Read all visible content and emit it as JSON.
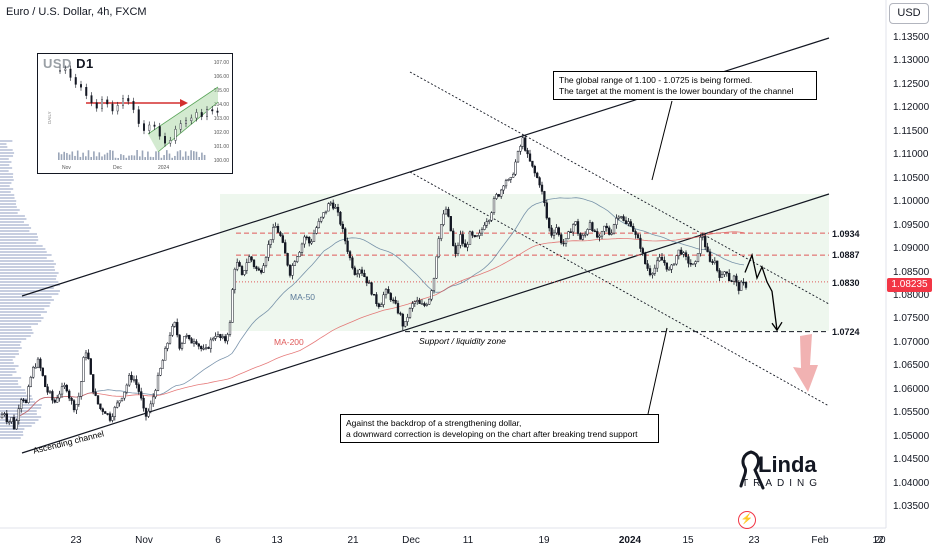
{
  "header": {
    "symbol_title": "Euro / U.S. Dollar, 4h, FXCM",
    "currency_button": "USD"
  },
  "price_tag": "1.08235",
  "chart_data": {
    "type": "candlestick",
    "symbol": "EURUSD",
    "timeframe": "4h",
    "y_axis": {
      "range": [
        1.0315,
        1.1385
      ],
      "tick_labels": [
        "1.13500",
        "1.13000",
        "1.12500",
        "1.12000",
        "1.11500",
        "1.11000",
        "1.10500",
        "1.10000",
        "1.09500",
        "1.09000",
        "1.08500",
        "1.08000",
        "1.07500",
        "1.07000",
        "1.06500",
        "1.06000",
        "1.05500",
        "1.05000",
        "1.04500",
        "1.04000",
        "1.03500"
      ]
    },
    "x_axis": {
      "tick_labels": [
        {
          "text": "23",
          "bold": false
        },
        {
          "text": "Nov",
          "bold": false
        },
        {
          "text": "6",
          "bold": false
        },
        {
          "text": "13",
          "bold": false
        },
        {
          "text": "21",
          "bold": false
        },
        {
          "text": "Dec",
          "bold": false
        },
        {
          "text": "11",
          "bold": false
        },
        {
          "text": "19",
          "bold": false
        },
        {
          "text": "2024",
          "bold": true
        },
        {
          "text": "15",
          "bold": false
        },
        {
          "text": "23",
          "bold": false
        },
        {
          "text": "Feb",
          "bold": false
        },
        {
          "text": "12",
          "bold": false
        },
        {
          "text": "20",
          "bold": false
        }
      ]
    },
    "price_path": [
      [
        0,
        1.054
      ],
      [
        4,
        1.0555
      ],
      [
        8,
        1.053
      ],
      [
        12,
        1.054
      ],
      [
        15,
        1.051
      ],
      [
        18,
        1.056
      ],
      [
        22,
        1.059
      ],
      [
        26,
        1.057
      ],
      [
        30,
        1.062
      ],
      [
        34,
        1.065
      ],
      [
        38,
        1.066
      ],
      [
        42,
        1.0635
      ],
      [
        46,
        1.06
      ],
      [
        50,
        1.059
      ],
      [
        54,
        1.057
      ],
      [
        58,
        1.059
      ],
      [
        62,
        1.06
      ],
      [
        66,
        1.061
      ],
      [
        70,
        1.058
      ],
      [
        75,
        1.056
      ],
      [
        80,
        1.0595
      ],
      [
        85,
        1.069
      ],
      [
        88,
        1.067
      ],
      [
        92,
        1.061
      ],
      [
        96,
        1.058
      ],
      [
        100,
        1.056
      ],
      [
        105,
        1.0555
      ],
      [
        110,
        1.054
      ],
      [
        115,
        1.056
      ],
      [
        120,
        1.058
      ],
      [
        125,
        1.06
      ],
      [
        130,
        1.063
      ],
      [
        135,
        1.062
      ],
      [
        140,
        1.059
      ],
      [
        145,
        1.054
      ],
      [
        150,
        1.056
      ],
      [
        155,
        1.06
      ],
      [
        160,
        1.064
      ],
      [
        165,
        1.068
      ],
      [
        170,
        1.072
      ],
      [
        175,
        1.074
      ],
      [
        180,
        1.069
      ],
      [
        185,
        1.072
      ],
      [
        190,
        1.07
      ],
      [
        195,
        1.071
      ],
      [
        200,
        1.069
      ],
      [
        205,
        1.068
      ],
      [
        210,
        1.07
      ],
      [
        215,
        1.072
      ],
      [
        220,
        1.071
      ],
      [
        225,
        1.0705
      ],
      [
        230,
        1.074
      ],
      [
        234,
        1.086
      ],
      [
        238,
        1.087
      ],
      [
        242,
        1.084
      ],
      [
        246,
        1.087
      ],
      [
        250,
        1.0885
      ],
      [
        255,
        1.086
      ],
      [
        260,
        1.085
      ],
      [
        265,
        1.088
      ],
      [
        270,
        1.092
      ],
      [
        275,
        1.095
      ],
      [
        280,
        1.093
      ],
      [
        285,
        1.089
      ],
      [
        290,
        1.085
      ],
      [
        295,
        1.088
      ],
      [
        300,
        1.09
      ],
      [
        305,
        1.093
      ],
      [
        310,
        1.091
      ],
      [
        315,
        1.094
      ],
      [
        320,
        1.096
      ],
      [
        325,
        1.098
      ],
      [
        330,
        1.1
      ],
      [
        335,
        1.099
      ],
      [
        340,
        1.096
      ],
      [
        345,
        1.092
      ],
      [
        350,
        1.088
      ],
      [
        355,
        1.085
      ],
      [
        360,
        1.086
      ],
      [
        365,
        1.084
      ],
      [
        370,
        1.082
      ],
      [
        375,
        1.079
      ],
      [
        380,
        1.078
      ],
      [
        385,
        1.081
      ],
      [
        390,
        1.08
      ],
      [
        395,
        1.078
      ],
      [
        400,
        1.076
      ],
      [
        404,
        1.073
      ],
      [
        408,
        1.076
      ],
      [
        412,
        1.078
      ],
      [
        416,
        1.079
      ],
      [
        420,
        1.078
      ],
      [
        425,
        1.078
      ],
      [
        430,
        1.08
      ],
      [
        434,
        1.084
      ],
      [
        438,
        1.092
      ],
      [
        442,
        1.096
      ],
      [
        446,
        1.0985
      ],
      [
        450,
        1.095
      ],
      [
        455,
        1.088
      ],
      [
        460,
        1.093
      ],
      [
        465,
        1.09
      ],
      [
        470,
        1.093
      ],
      [
        475,
        1.092
      ],
      [
        480,
        1.093
      ],
      [
        485,
        1.096
      ],
      [
        490,
        1.097
      ],
      [
        495,
        1.101
      ],
      [
        500,
        1.102
      ],
      [
        505,
        1.105
      ],
      [
        510,
        1.104
      ],
      [
        515,
        1.108
      ],
      [
        519,
        1.111
      ],
      [
        523,
        1.1135
      ],
      [
        527,
        1.11
      ],
      [
        531,
        1.108
      ],
      [
        535,
        1.106
      ],
      [
        540,
        1.104
      ],
      [
        545,
        1.099
      ],
      [
        548,
        1.095
      ],
      [
        552,
        1.093
      ],
      [
        556,
        1.095
      ],
      [
        560,
        1.092
      ],
      [
        565,
        1.091
      ],
      [
        570,
        1.094
      ],
      [
        575,
        1.096
      ],
      [
        580,
        1.092
      ],
      [
        585,
        1.093
      ],
      [
        590,
        1.096
      ],
      [
        595,
        1.093
      ],
      [
        600,
        1.092
      ],
      [
        605,
        1.095
      ],
      [
        610,
        1.093
      ],
      [
        615,
        1.096
      ],
      [
        620,
        1.098
      ],
      [
        625,
        1.095
      ],
      [
        630,
        1.096
      ],
      [
        635,
        1.093
      ],
      [
        640,
        1.091
      ],
      [
        645,
        1.087
      ],
      [
        650,
        1.085
      ],
      [
        655,
        1.086
      ],
      [
        660,
        1.088
      ],
      [
        665,
        1.087
      ],
      [
        670,
        1.085
      ],
      [
        675,
        1.088
      ],
      [
        680,
        1.09
      ],
      [
        685,
        1.088
      ],
      [
        690,
        1.087
      ],
      [
        695,
        1.086
      ],
      [
        700,
        1.092
      ],
      [
        703,
        1.093
      ],
      [
        706,
        1.09
      ],
      [
        710,
        1.087
      ],
      [
        714,
        1.088
      ],
      [
        718,
        1.085
      ],
      [
        722,
        1.084
      ],
      [
        726,
        1.086
      ],
      [
        730,
        1.083
      ],
      [
        734,
        1.084
      ],
      [
        738,
        1.0815
      ],
      [
        742,
        1.0825
      ],
      [
        746,
        1.0823
      ]
    ],
    "projection": [
      [
        745,
        1.085
      ],
      [
        752,
        1.0887
      ],
      [
        757,
        1.0838
      ],
      [
        762,
        1.0862
      ],
      [
        767,
        1.083
      ],
      [
        772,
        1.081
      ],
      [
        777,
        1.0727
      ]
    ],
    "levels": [
      {
        "label": "1.0934",
        "price": 1.0934,
        "style": "dashed-red"
      },
      {
        "label": "1.0887",
        "price": 1.0887,
        "style": "dashed-red"
      },
      {
        "label": "1.0830",
        "price": 1.083,
        "style": "dotted-red"
      },
      {
        "label": "1.0724",
        "price": 1.0724,
        "style": "dashed-black"
      }
    ],
    "range_zone": {
      "top": 1.1017,
      "bottom": 1.0724
    },
    "moving_averages": [
      {
        "name": "MA-50",
        "color": "#5b7a99"
      },
      {
        "name": "MA-200",
        "color": "#e05a5a"
      }
    ],
    "annotations": {
      "top_box": [
        "The global range of 1.100 - 1.0725 is being formed.",
        "The target at the moment is the lower boundary of the channel"
      ],
      "bottom_box": [
        "Against the backdrop of a strengthening dollar,",
        "a downward correction is developing on the chart after breaking trend support"
      ],
      "support_label": "Support / liquidity zone",
      "channel_label": "Ascending channel"
    }
  },
  "inset": {
    "title_prefix": "USD",
    "title_suffix": "D1",
    "side_label": "DAILY",
    "y_ticks": [
      "107.00",
      "106.00",
      "105.00",
      "104.00",
      "103.00",
      "102.00",
      "101.00",
      "100.00"
    ],
    "x_ticks": [
      "Nov",
      "Dec",
      "2024"
    ],
    "price_path": [
      [
        0,
        106.4
      ],
      [
        3,
        106.5
      ],
      [
        6,
        105.9
      ],
      [
        9,
        105.4
      ],
      [
        12,
        105.2
      ],
      [
        15,
        104.6
      ],
      [
        18,
        104.1
      ],
      [
        21,
        103.7
      ],
      [
        24,
        104.3
      ],
      [
        27,
        104.0
      ],
      [
        30,
        103.5
      ],
      [
        33,
        103.9
      ],
      [
        36,
        104.4
      ],
      [
        39,
        104.2
      ],
      [
        42,
        103.6
      ],
      [
        45,
        102.6
      ],
      [
        48,
        102.1
      ],
      [
        51,
        102.5
      ],
      [
        54,
        102.4
      ],
      [
        57,
        101.7
      ],
      [
        60,
        101.2
      ],
      [
        63,
        101.4
      ],
      [
        66,
        102.2
      ],
      [
        69,
        102.6
      ],
      [
        72,
        102.8
      ],
      [
        75,
        103.0
      ],
      [
        78,
        103.4
      ],
      [
        81,
        103.1
      ],
      [
        84,
        103.6
      ],
      [
        87,
        103.5
      ],
      [
        90,
        103.4
      ]
    ]
  },
  "logo": {
    "text": "Linda",
    "sub": "TRADING"
  }
}
